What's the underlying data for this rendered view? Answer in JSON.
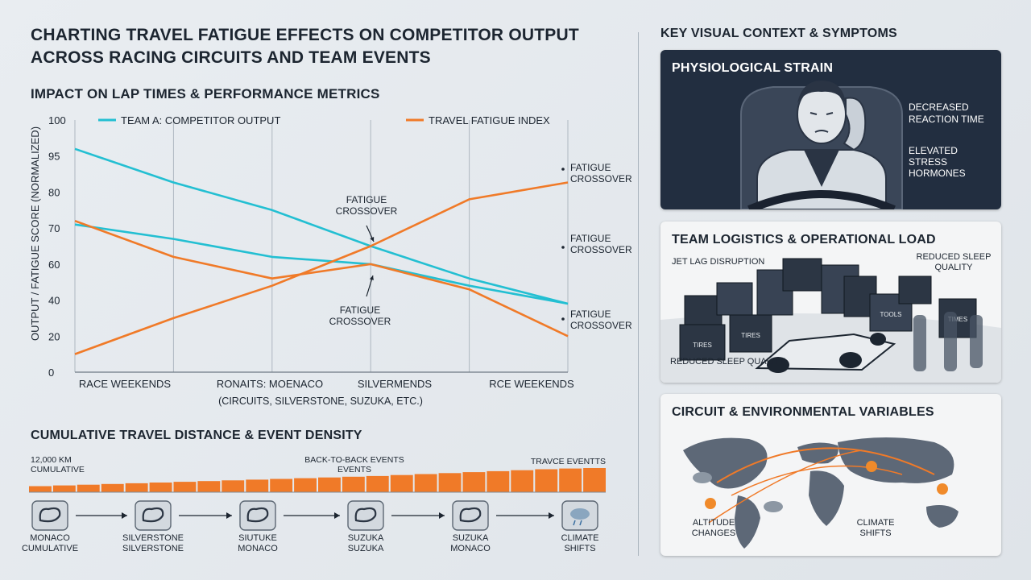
{
  "title_lines": [
    "CHARTING TRAVEL FATIGUE EFFECTS ON COMPETITOR OUTPUT",
    "ACROSS RACING CIRCUITS AND TEAM EVENTS"
  ],
  "colors": {
    "teal": "#23bfd2",
    "orange": "#f07a28",
    "navy": "#1f2b3c",
    "grid": "#aeb7c0"
  },
  "chart_data": {
    "type": "line",
    "title": "IMPACT ON LAP TIMES & PERFORMANCE METRICS",
    "ylabel": "OUTPUT / FATIGUE SCORE (NORMALIZED)",
    "yticks": [
      "100",
      "95",
      "80",
      "70",
      "60",
      "40",
      "20",
      "0"
    ],
    "x": [
      0,
      1,
      2,
      3,
      4,
      5
    ],
    "xtick_labels": [
      "RACE WEEKENDS",
      "RONAITS: MOENACO",
      "SILVERMENDS",
      "RCE WEEKENDS"
    ],
    "xtick_sublabel": "(CIRCUITS, SILVERSTONE, SUZUKA, ETC.)",
    "series": [
      {
        "name": "TEAM A: COMPETITOR OUTPUT",
        "color": "#23bfd2",
        "values": [
          96,
          84,
          75,
          65,
          52,
          38
        ]
      },
      {
        "name": "",
        "color": "#23bfd2",
        "values": [
          71,
          67,
          62,
          60,
          48,
          38
        ]
      },
      {
        "name": "",
        "color": "#f07a28",
        "values": [
          72,
          62,
          52,
          60,
          46,
          20
        ]
      },
      {
        "name": "TRAVEL FATIGUE INDEX",
        "color": "#f07a28",
        "values": [
          10,
          30,
          48,
          65,
          78,
          84
        ]
      }
    ],
    "annotations": [
      {
        "text": [
          "FATIGUE",
          "CROSSOVER"
        ]
      },
      {
        "text": [
          "FATIGUE",
          "CROSSOVER"
        ]
      },
      {
        "text": [
          "FATIGUE",
          "CROSSOVER"
        ]
      },
      {
        "text": [
          "FATIGUE",
          "CROSSOVER"
        ]
      },
      {
        "text": [
          "FATIGUE",
          "CROSSOVER"
        ]
      }
    ]
  },
  "travel": {
    "title": "CUMULATIVE TRAVEL DISTANCE & EVENT DENSITY",
    "label_left_1": "12,000 KM",
    "label_left_2": "CUMULATIVE",
    "label_mid_1": "BACK-TO-BACK EVENTS",
    "label_mid_2": "EVENTS",
    "label_right": "TRAVCE EVENTTS",
    "bar_levels": [
      0.25,
      0.28,
      0.31,
      0.34,
      0.37,
      0.4,
      0.43,
      0.46,
      0.49,
      0.52,
      0.55,
      0.58,
      0.61,
      0.64,
      0.67,
      0.71,
      0.75,
      0.79,
      0.83,
      0.87,
      0.91,
      0.95,
      0.98,
      1.0
    ],
    "route": [
      {
        "l1": "MONACO",
        "l2": "CUMULATIVE",
        "icon": "circuit-icon"
      },
      {
        "l1": "SILVERSTONE",
        "l2": "SILVERSTONE",
        "icon": "circuit-icon"
      },
      {
        "l1": "SIUTUKE",
        "l2": "MONACO",
        "icon": "circuit-icon"
      },
      {
        "l1": "SUZUKA",
        "l2": "SUZUKA",
        "icon": "circuit-icon"
      },
      {
        "l1": "SUZUKA",
        "l2": "MONACO",
        "icon": "circuit-icon"
      },
      {
        "l1": "CLIMATE",
        "l2": "SHIFTS",
        "icon": "weather-icon"
      }
    ]
  },
  "right": {
    "title": "KEY VISUAL CONTEXT & SYMPTOMS",
    "physio": {
      "title": "PHYSIOLOGICAL STRAIN",
      "note1": [
        "DECREASED",
        "REACTION TIME"
      ],
      "note2": [
        "ELEVATED",
        "STRESS",
        "HORMONES"
      ]
    },
    "logistics": {
      "title": "TEAM LOGISTICS & OPERATIONAL LOAD",
      "l1": "JET LAG DISRUPTION",
      "l2": [
        "REDUCED SLEEP",
        "QUALITY"
      ],
      "l3": "REDUCED SLEEP QUALITY",
      "box_labels": [
        "TIRES",
        "TIRES",
        "TOOLS",
        "TIMES"
      ]
    },
    "circuit": {
      "title": "CIRCUIT & ENVIRONMENTAL VARIABLES",
      "l1": [
        "ALTITUDE",
        "CHANGES"
      ],
      "l2": [
        "CLIMATE",
        "SHIFTS"
      ]
    }
  }
}
